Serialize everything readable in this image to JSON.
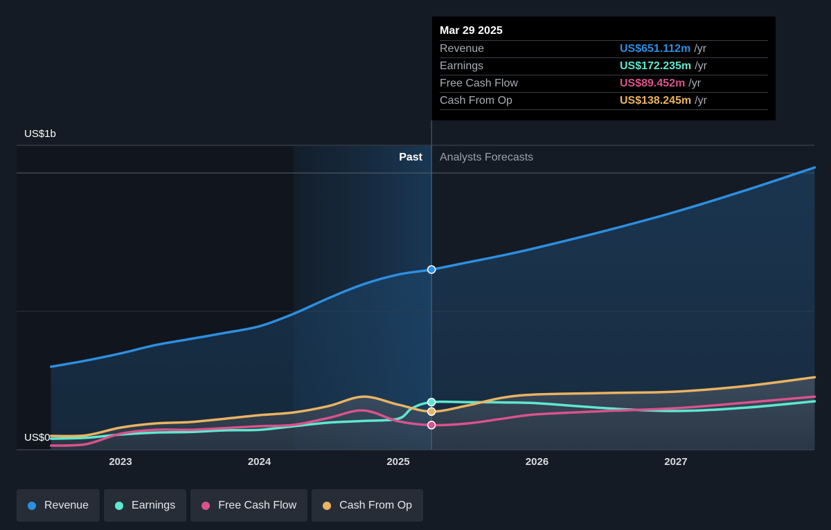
{
  "chart_data": {
    "type": "line",
    "y_unit_label_top": "US$1b",
    "y_unit_label_bottom": "US$0",
    "ylim": [
      0,
      1100
    ],
    "x_ticks": [
      "2023",
      "2024",
      "2025",
      "2026",
      "2027"
    ],
    "xlim": [
      2022.5,
      2028.0
    ],
    "past_label": "Past",
    "forecast_label": "Analysts Forecasts",
    "grid": true,
    "legend_position": "bottom",
    "series": [
      {
        "name": "Revenue",
        "color": "#2d8fe0",
        "points": [
          [
            2022.5,
            300
          ],
          [
            2022.75,
            322
          ],
          [
            2023.0,
            348
          ],
          [
            2023.25,
            378
          ],
          [
            2023.5,
            400
          ],
          [
            2023.75,
            422
          ],
          [
            2024.0,
            446
          ],
          [
            2024.25,
            492
          ],
          [
            2024.5,
            548
          ],
          [
            2024.75,
            598
          ],
          [
            2025.0,
            633
          ],
          [
            2025.24,
            651
          ],
          [
            2025.5,
            677
          ],
          [
            2025.75,
            702
          ],
          [
            2026.0,
            730
          ],
          [
            2026.5,
            792
          ],
          [
            2027.0,
            860
          ],
          [
            2027.5,
            937
          ],
          [
            2028.0,
            1020
          ]
        ]
      },
      {
        "name": "Earnings",
        "color": "#5ee8d0",
        "points": [
          [
            2022.5,
            40
          ],
          [
            2022.75,
            43
          ],
          [
            2023.0,
            55
          ],
          [
            2023.25,
            62
          ],
          [
            2023.5,
            64
          ],
          [
            2023.75,
            70
          ],
          [
            2024.0,
            72
          ],
          [
            2024.25,
            85
          ],
          [
            2024.5,
            98
          ],
          [
            2024.75,
            104
          ],
          [
            2025.0,
            112
          ],
          [
            2025.1,
            150
          ],
          [
            2025.24,
            172
          ],
          [
            2025.5,
            172
          ],
          [
            2025.75,
            171
          ],
          [
            2026.0,
            168
          ],
          [
            2026.5,
            150
          ],
          [
            2027.0,
            140
          ],
          [
            2027.5,
            152
          ],
          [
            2028.0,
            175
          ]
        ]
      },
      {
        "name": "Free Cash Flow",
        "color": "#d9538a",
        "points": [
          [
            2022.5,
            15
          ],
          [
            2022.75,
            20
          ],
          [
            2023.0,
            58
          ],
          [
            2023.25,
            72
          ],
          [
            2023.5,
            72
          ],
          [
            2023.75,
            78
          ],
          [
            2024.0,
            85
          ],
          [
            2024.25,
            90
          ],
          [
            2024.5,
            115
          ],
          [
            2024.75,
            142
          ],
          [
            2025.0,
            103
          ],
          [
            2025.24,
            89
          ],
          [
            2025.5,
            95
          ],
          [
            2025.75,
            112
          ],
          [
            2026.0,
            128
          ],
          [
            2026.5,
            140
          ],
          [
            2027.0,
            150
          ],
          [
            2027.5,
            170
          ],
          [
            2028.0,
            192
          ]
        ]
      },
      {
        "name": "Cash From Op",
        "color": "#eab362",
        "points": [
          [
            2022.5,
            50
          ],
          [
            2022.75,
            52
          ],
          [
            2023.0,
            80
          ],
          [
            2023.25,
            95
          ],
          [
            2023.5,
            100
          ],
          [
            2023.75,
            112
          ],
          [
            2024.0,
            125
          ],
          [
            2024.25,
            135
          ],
          [
            2024.5,
            158
          ],
          [
            2024.75,
            192
          ],
          [
            2025.0,
            163
          ],
          [
            2025.24,
            138
          ],
          [
            2025.5,
            160
          ],
          [
            2025.75,
            188
          ],
          [
            2026.0,
            200
          ],
          [
            2026.5,
            205
          ],
          [
            2027.0,
            210
          ],
          [
            2027.5,
            230
          ],
          [
            2028.0,
            262
          ]
        ]
      }
    ],
    "tooltip": {
      "date": "Mar 29 2025",
      "x": 2025.24,
      "rows": [
        {
          "name": "Revenue",
          "value": "US$651.112m",
          "unit": "/yr",
          "color": "#2d8fe0"
        },
        {
          "name": "Earnings",
          "value": "US$172.235m",
          "unit": "/yr",
          "color": "#5ee8d0"
        },
        {
          "name": "Free Cash Flow",
          "value": "US$89.452m",
          "unit": "/yr",
          "color": "#d9538a"
        },
        {
          "name": "Cash From Op",
          "value": "US$138.245m",
          "unit": "/yr",
          "color": "#eab362"
        }
      ]
    }
  },
  "legend": [
    {
      "label": "Revenue",
      "color": "#2d8fe0"
    },
    {
      "label": "Earnings",
      "color": "#5ee8d0"
    },
    {
      "label": "Free Cash Flow",
      "color": "#d9538a"
    },
    {
      "label": "Cash From Op",
      "color": "#eab362"
    }
  ]
}
